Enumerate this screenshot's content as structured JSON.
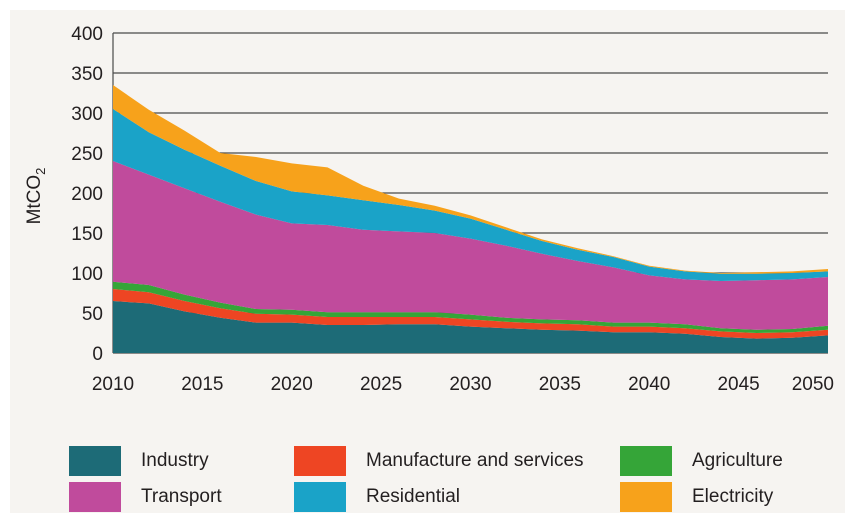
{
  "chart_data": {
    "type": "area",
    "stacked": true,
    "title": "",
    "ylabel": "MtCO",
    "ylabel_subscript": "2",
    "xlabel": "",
    "ylim": [
      0,
      400
    ],
    "yticks": [
      0,
      50,
      100,
      150,
      200,
      250,
      300,
      350,
      400
    ],
    "xlim": [
      2010,
      2050
    ],
    "xticks": [
      2010,
      2015,
      2020,
      2025,
      2030,
      2035,
      2040,
      2045,
      2050
    ],
    "grid": "horizontal",
    "legend_position": "bottom",
    "x": [
      2010,
      2012,
      2014,
      2016,
      2018,
      2020,
      2022,
      2024,
      2026,
      2028,
      2030,
      2032,
      2034,
      2036,
      2038,
      2040,
      2042,
      2044,
      2046,
      2048,
      2050
    ],
    "series": [
      {
        "name": "Industry",
        "color": "#1d6b77",
        "values": [
          65,
          62,
          52,
          44,
          38,
          38,
          35,
          35,
          36,
          36,
          33,
          31,
          29,
          28,
          26,
          26,
          24,
          20,
          18,
          19,
          22
        ]
      },
      {
        "name": "Manufacture and services",
        "color": "#ee4523",
        "values": [
          15,
          14,
          13,
          12,
          11,
          10,
          10,
          10,
          9,
          9,
          9,
          8,
          8,
          8,
          7,
          7,
          7,
          7,
          7,
          7,
          7
        ]
      },
      {
        "name": "Agriculture",
        "color": "#35a538",
        "values": [
          9,
          9,
          8,
          7,
          6,
          6,
          6,
          6,
          6,
          6,
          6,
          5,
          5,
          5,
          5,
          5,
          5,
          4,
          4,
          4,
          5
        ]
      },
      {
        "name": "Transport",
        "color": "#c04b9c",
        "values": [
          151,
          138,
          133,
          126,
          118,
          108,
          109,
          103,
          101,
          99,
          95,
          90,
          82,
          74,
          69,
          59,
          56,
          59,
          62,
          62,
          61
        ]
      },
      {
        "name": "Residential",
        "color": "#1aa3c8",
        "values": [
          65,
          53,
          48,
          45,
          42,
          40,
          37,
          37,
          33,
          28,
          25,
          20,
          16,
          14,
          13,
          11,
          10,
          9,
          8,
          8,
          7
        ]
      },
      {
        "name": "Electricity",
        "color": "#f7a21b",
        "values": [
          30,
          28,
          24,
          16,
          30,
          35,
          35,
          18,
          8,
          6,
          4,
          3,
          2,
          2,
          1,
          1,
          1,
          1,
          2,
          2,
          3
        ]
      }
    ]
  },
  "legend": [
    {
      "label": "Industry",
      "color": "#1d6b77"
    },
    {
      "label": "Manufacture and services",
      "color": "#ee4523"
    },
    {
      "label": "Agriculture",
      "color": "#35a538"
    },
    {
      "label": "Transport",
      "color": "#c04b9c"
    },
    {
      "label": "Residential",
      "color": "#1aa3c8"
    },
    {
      "label": "Electricity",
      "color": "#f7a21b"
    }
  ]
}
